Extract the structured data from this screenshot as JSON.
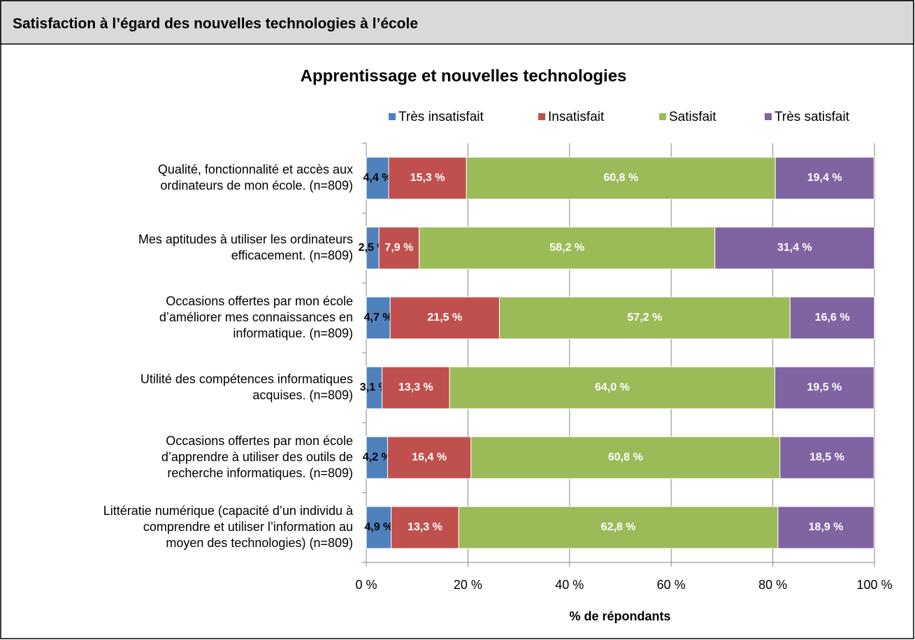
{
  "header": {
    "title": "Satisfaction à l’égard des nouvelles technologies à l’école"
  },
  "chart_data": {
    "type": "stacked-barh",
    "title": "Apprentissage et nouvelles technologies",
    "xlabel": "% de répondants",
    "categories": [
      "Qualité, fonctionnalité et accès aux\nordinateurs de mon école. (n=809)",
      "Mes aptitudes à utiliser les ordinateurs\nefficacement. (n=809)",
      "Occasions offertes par mon école\nd’améliorer mes connaissances en\ninformatique. (n=809)",
      "Utilité des compétences informatiques\nacquises. (n=809)",
      "Occasions offertes par mon école\nd’apprendre à utiliser des outils de\nrecherche informatiques. (n=809)",
      "Littératie numérique (capacité d’un individu à\ncomprendre et utiliser l’information au\nmoyen des technologies) (n=809)"
    ],
    "series": [
      {
        "name": "Très insatisfait",
        "color": "#4f81bd",
        "label_color": "#000000",
        "values": [
          4.4,
          2.5,
          4.7,
          3.1,
          4.2,
          4.9
        ],
        "value_labels": [
          "4,4 %",
          "2,5 %",
          "4,7 %",
          "3,1 %",
          "4,2 %",
          "4,9 %"
        ]
      },
      {
        "name": "Insatisfait",
        "color": "#c0504d",
        "label_color": "#ffffff",
        "values": [
          15.3,
          7.9,
          21.5,
          13.3,
          16.4,
          13.3
        ],
        "value_labels": [
          "15,3 %",
          "7,9 %",
          "21,5 %",
          "13,3 %",
          "16,4 %",
          "13,3 %"
        ]
      },
      {
        "name": "Satisfait",
        "color": "#9bbb59",
        "label_color": "#ffffff",
        "values": [
          60.8,
          58.2,
          57.2,
          64.0,
          60.8,
          62.8
        ],
        "value_labels": [
          "60,8 %",
          "58,2 %",
          "57,2 %",
          "64,0 %",
          "60,8 %",
          "62,8 %"
        ]
      },
      {
        "name": "Très satisfait",
        "color": "#8064a2",
        "label_color": "#ffffff",
        "values": [
          19.4,
          31.4,
          16.6,
          19.5,
          18.5,
          18.9
        ],
        "value_labels": [
          "19,4 %",
          "31,4 %",
          "16,6 %",
          "19,5 %",
          "18,5 %",
          "18,9 %"
        ]
      }
    ],
    "xlim": [
      0,
      100
    ],
    "xticks": [
      {
        "value": 0,
        "label": "0 %"
      },
      {
        "value": 20,
        "label": "20 %"
      },
      {
        "value": 40,
        "label": "40 %"
      },
      {
        "value": 60,
        "label": "60 %"
      },
      {
        "value": 80,
        "label": "80 %"
      },
      {
        "value": 100,
        "label": "100 %"
      }
    ],
    "grid": true,
    "legend": "top"
  }
}
